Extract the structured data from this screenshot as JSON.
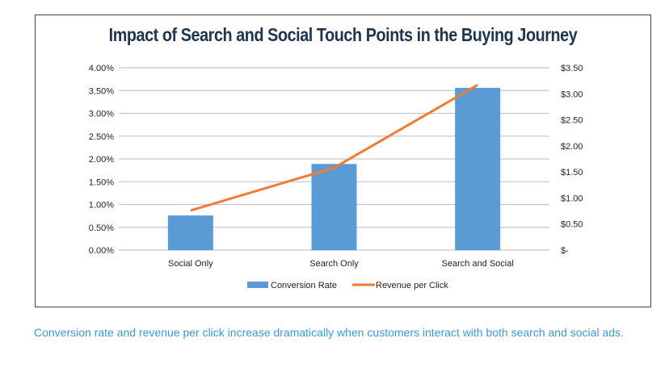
{
  "chart_data": {
    "type": "bar",
    "title": "Impact of Search and Social Touch Points in the Buying Journey",
    "categories": [
      "Social Only",
      "Search Only",
      "Search and Social"
    ],
    "series": [
      {
        "name": "Conversion Rate",
        "type": "bar",
        "axis": "left",
        "values": [
          0.76,
          1.89,
          3.56
        ],
        "color": "#5b9bd5"
      },
      {
        "name": "Revenue per Click",
        "type": "line",
        "axis": "right",
        "values": [
          0.76,
          1.58,
          3.17
        ],
        "color": "#ed7d31"
      }
    ],
    "left_axis": {
      "ylim": [
        0,
        4
      ],
      "ticks": [
        "0.00%",
        "0.50%",
        "1.00%",
        "1.50%",
        "2.00%",
        "2.50%",
        "3.00%",
        "3.50%",
        "4.00%"
      ]
    },
    "right_axis": {
      "ylim": [
        0,
        3.5
      ],
      "ticks": [
        "$-",
        "$0.50",
        "$1.00",
        "$1.50",
        "$2.00",
        "$2.50",
        "$3.00",
        "$3.50"
      ]
    },
    "grid": true,
    "legend": "bottom"
  },
  "caption": "Conversion rate and revenue per click increase dramatically when customers interact with both search and social ads."
}
